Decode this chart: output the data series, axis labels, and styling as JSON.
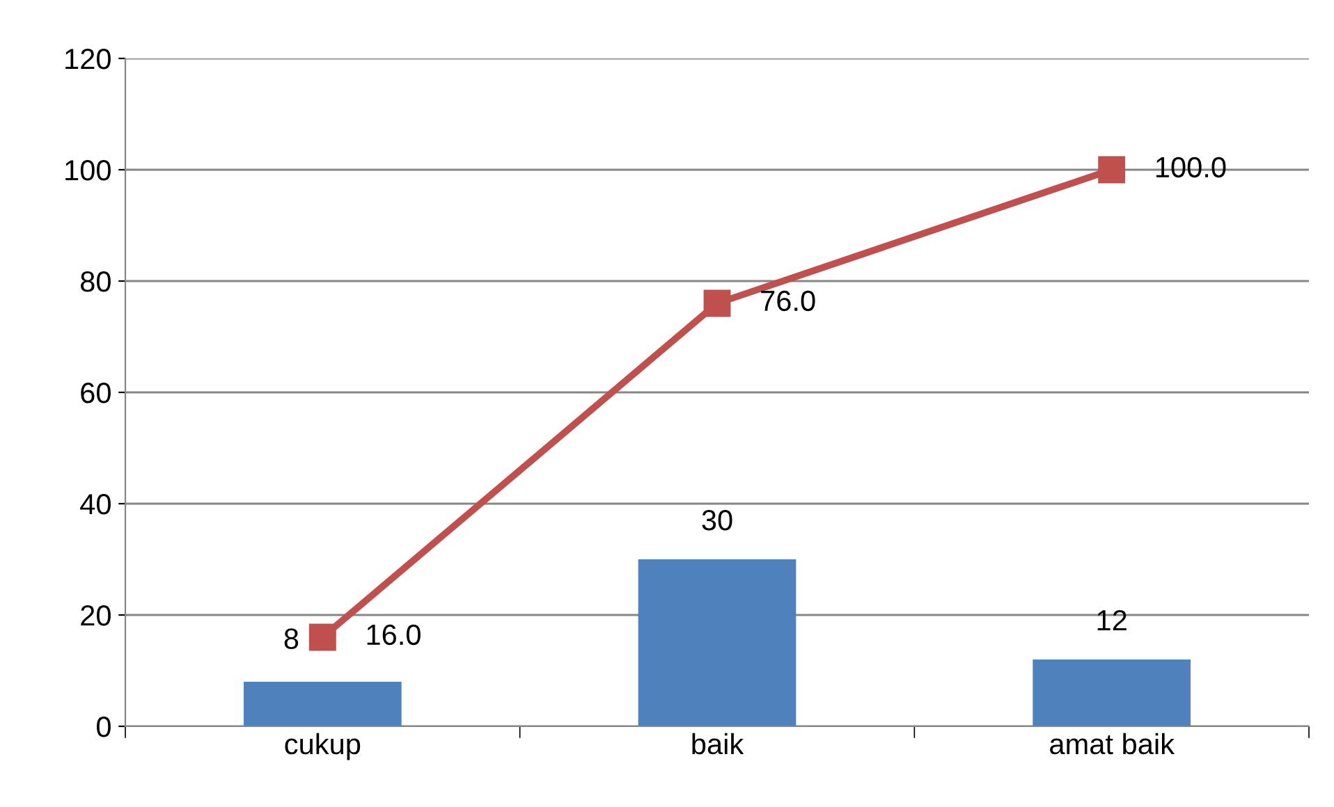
{
  "chart_data": {
    "type": "bar",
    "categories": [
      "cukup",
      "baik",
      "amat baik"
    ],
    "series": [
      {
        "color": "#4f81bd",
        "values": [
          8,
          30,
          12
        ],
        "value_labels": [
          "8",
          "30",
          "12"
        ]
      },
      {
        "type": "line",
        "color": "#c0504d",
        "values": [
          16,
          76,
          100
        ],
        "value_labels": [
          "16.0",
          "76.0",
          "100.0"
        ],
        "marker": "square",
        "line_style": "solid"
      }
    ],
    "ylim": [
      0,
      120
    ],
    "yticks": [
      0,
      20,
      40,
      60,
      80,
      100,
      120
    ],
    "grid": "y",
    "legend": false
  }
}
